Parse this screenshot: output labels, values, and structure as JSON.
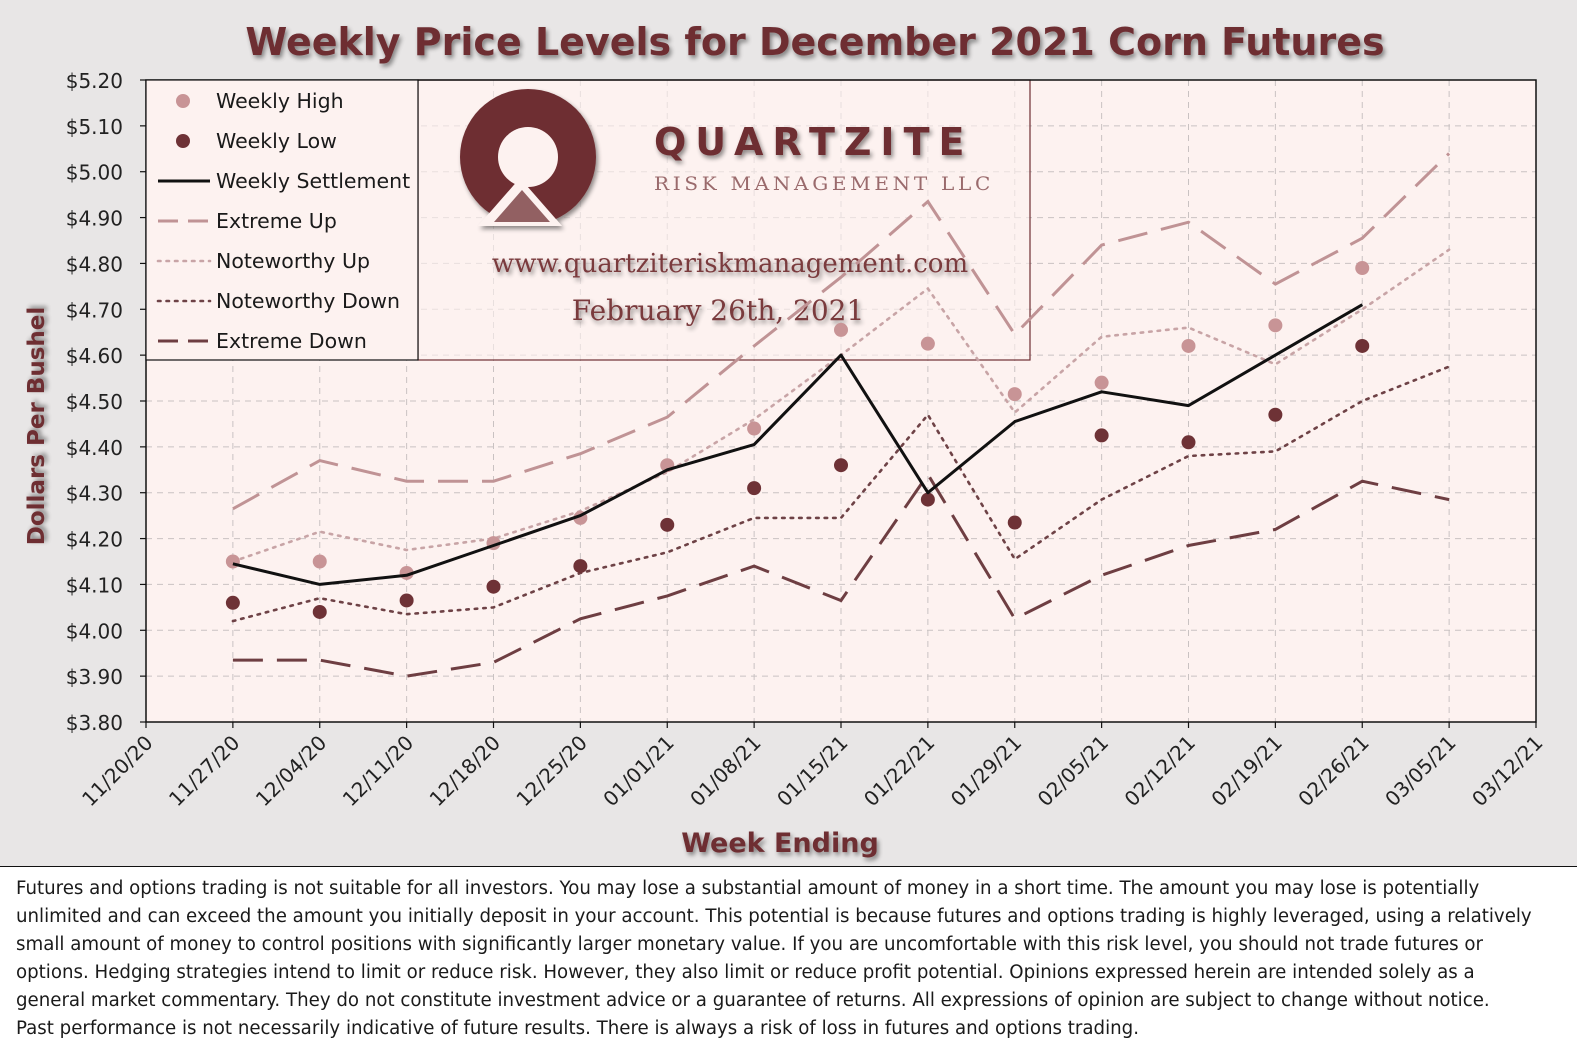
{
  "colors": {
    "title": "#6e2f33",
    "plot_bg": "#fdf2f0",
    "grid": "#c9c2c2",
    "weekly_high": "#c89496",
    "weekly_low": "#6e3236",
    "settlement": "#111111",
    "extreme_up": "#c09395",
    "noteworthy_up": "#c8a4a6",
    "noteworthy_down": "#6e4246",
    "extreme_down": "#6e3e42"
  },
  "watermark": {
    "brand": "QUARTZITE",
    "subtitle": "RISK MANAGEMENT LLC",
    "url": "www.quartziteriskmanagement.com",
    "date": "February 26th, 2021",
    "logo_icon": "quartzite-logo-icon"
  },
  "chart_data": {
    "type": "line",
    "title": "Weekly Price Levels for December 2021 Corn Futures",
    "xlabel": "Week Ending",
    "ylabel": "Dollars Per Bushel",
    "x_ticks": [
      "11/20/20",
      "11/27/20",
      "12/04/20",
      "12/11/20",
      "12/18/20",
      "12/25/20",
      "01/01/21",
      "01/08/21",
      "01/15/21",
      "01/22/21",
      "01/29/21",
      "02/05/21",
      "02/12/21",
      "02/19/21",
      "02/26/21",
      "03/05/21",
      "03/12/21"
    ],
    "y_ticks": [
      "$3.80",
      "$3.90",
      "$4.00",
      "$4.10",
      "$4.20",
      "$4.30",
      "$4.40",
      "$4.50",
      "$4.60",
      "$4.70",
      "$4.80",
      "$4.90",
      "$5.00",
      "$5.10",
      "$5.20"
    ],
    "ylim": [
      3.8,
      5.2
    ],
    "grid": true,
    "legend_position": "top-left",
    "series": [
      {
        "name": "Weekly High",
        "style": "marker",
        "color_key": "weekly_high",
        "x": [
          "11/27/20",
          "12/04/20",
          "12/11/20",
          "12/18/20",
          "12/25/20",
          "01/01/21",
          "01/08/21",
          "01/15/21",
          "01/22/21",
          "01/29/21",
          "02/05/21",
          "02/12/21",
          "02/19/21",
          "02/26/21"
        ],
        "values": [
          4.15,
          4.15,
          4.125,
          4.19,
          4.245,
          4.36,
          4.44,
          4.655,
          4.625,
          4.515,
          4.54,
          4.62,
          4.665,
          4.79
        ]
      },
      {
        "name": "Weekly Low",
        "style": "marker",
        "color_key": "weekly_low",
        "x": [
          "11/27/20",
          "12/04/20",
          "12/11/20",
          "12/18/20",
          "12/25/20",
          "01/01/21",
          "01/08/21",
          "01/15/21",
          "01/22/21",
          "01/29/21",
          "02/05/21",
          "02/12/21",
          "02/19/21",
          "02/26/21"
        ],
        "values": [
          4.06,
          4.04,
          4.065,
          4.095,
          4.14,
          4.23,
          4.31,
          4.36,
          4.285,
          4.235,
          4.425,
          4.41,
          4.47,
          4.62
        ]
      },
      {
        "name": "Weekly Settlement",
        "style": "solid",
        "color_key": "settlement",
        "x": [
          "11/27/20",
          "12/04/20",
          "12/11/20",
          "12/18/20",
          "12/25/20",
          "01/01/21",
          "01/08/21",
          "01/15/21",
          "01/22/21",
          "01/29/21",
          "02/05/21",
          "02/12/21",
          "02/19/21",
          "02/26/21"
        ],
        "values": [
          4.145,
          4.1,
          4.12,
          4.185,
          4.25,
          4.35,
          4.405,
          4.6,
          4.3,
          4.455,
          4.52,
          4.49,
          4.6,
          4.71
        ]
      },
      {
        "name": "Extreme Up",
        "style": "longdash",
        "color_key": "extreme_up",
        "x": [
          "11/27/20",
          "12/04/20",
          "12/11/20",
          "12/18/20",
          "12/25/20",
          "01/01/21",
          "01/08/21",
          "01/15/21",
          "01/22/21",
          "01/29/21",
          "02/05/21",
          "02/12/21",
          "02/19/21",
          "02/26/21",
          "03/05/21"
        ],
        "values": [
          4.265,
          4.37,
          4.325,
          4.325,
          4.385,
          4.465,
          4.62,
          4.77,
          4.935,
          4.645,
          4.84,
          4.89,
          4.755,
          4.855,
          5.04
        ]
      },
      {
        "name": "Noteworthy Up",
        "style": "dotted",
        "color_key": "noteworthy_up",
        "x": [
          "11/27/20",
          "12/04/20",
          "12/11/20",
          "12/18/20",
          "12/25/20",
          "01/01/21",
          "01/08/21",
          "01/15/21",
          "01/22/21",
          "01/29/21",
          "02/05/21",
          "02/12/21",
          "02/19/21",
          "02/26/21",
          "03/05/21"
        ],
        "values": [
          4.15,
          4.215,
          4.175,
          4.2,
          4.26,
          4.345,
          4.46,
          4.6,
          4.745,
          4.475,
          4.64,
          4.66,
          4.58,
          4.7,
          4.83
        ]
      },
      {
        "name": "Noteworthy Down",
        "style": "dotted",
        "color_key": "noteworthy_down",
        "x": [
          "11/27/20",
          "12/04/20",
          "12/11/20",
          "12/18/20",
          "12/25/20",
          "01/01/21",
          "01/08/21",
          "01/15/21",
          "01/22/21",
          "01/29/21",
          "02/05/21",
          "02/12/21",
          "02/19/21",
          "02/26/21",
          "03/05/21"
        ],
        "values": [
          4.02,
          4.07,
          4.035,
          4.05,
          4.125,
          4.17,
          4.245,
          4.245,
          4.47,
          4.155,
          4.285,
          4.38,
          4.39,
          4.5,
          4.575
        ]
      },
      {
        "name": "Extreme Down",
        "style": "longdash",
        "color_key": "extreme_down",
        "x": [
          "11/27/20",
          "12/04/20",
          "12/11/20",
          "12/18/20",
          "12/25/20",
          "01/01/21",
          "01/08/21",
          "01/15/21",
          "01/22/21",
          "01/29/21",
          "02/05/21",
          "02/12/21",
          "02/19/21",
          "02/26/21",
          "03/05/21"
        ],
        "values": [
          3.935,
          3.935,
          3.9,
          3.93,
          4.025,
          4.075,
          4.14,
          4.065,
          4.34,
          4.025,
          4.12,
          4.185,
          4.22,
          4.325,
          4.285
        ]
      }
    ]
  },
  "disclaimer": {
    "lines": [
      "Futures and options trading is not suitable for all investors. You may lose a substantial amount of money in a short time. The amount you may lose is potentially",
      "unlimited and can exceed the amount you initially deposit in your account. This potential is because futures and options trading is highly leveraged, using a relatively",
      "small amount of money to control positions with significantly larger monetary value. If you are uncomfortable with this risk level, you should not trade futures or",
      "options. Hedging strategies intend to limit or reduce risk. However, they also limit or reduce profit potential. Opinions expressed herein are intended solely as a",
      "general market commentary. They do not constitute investment advice or a guarantee of returns. All expressions of opinion are subject to change without notice.",
      "Past performance is not necessarily indicative of future results. There is always a risk of loss in futures and options trading."
    ]
  }
}
